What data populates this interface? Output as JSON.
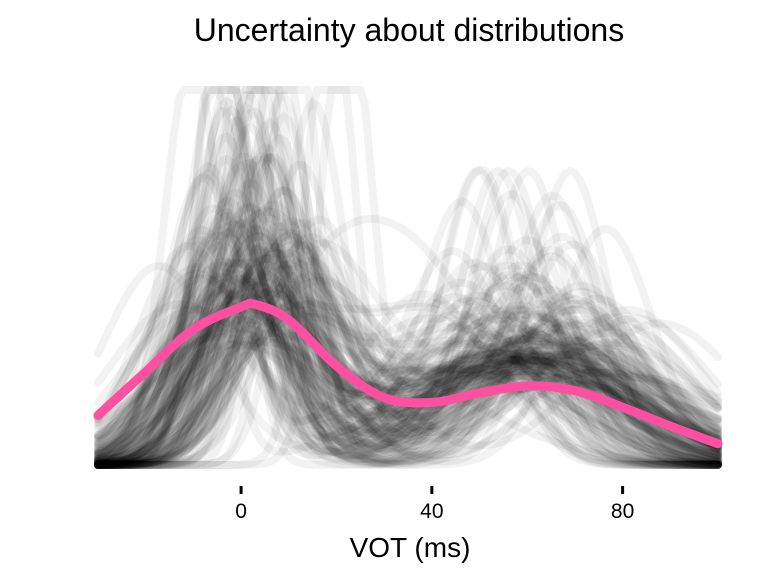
{
  "chart_data": {
    "type": "line",
    "title": "Uncertainty about distributions",
    "xlabel": "VOT (ms)",
    "ylabel": "",
    "xlim": [
      -30,
      100
    ],
    "x_ticks": [
      0,
      40,
      80
    ],
    "x_tick_labels": [
      "0",
      "40",
      "80"
    ],
    "grid": false,
    "legend": "none",
    "series": [
      {
        "color": "#000000",
        "opacity": 0.05,
        "samples": 160,
        "description_of_values": "sampled mixtures of two Gaussian components"
      },
      {
        "color": "#ff4fa0",
        "x": [
          -30,
          -20,
          -10,
          0,
          3,
          10,
          20,
          30,
          40,
          50,
          60,
          70,
          80,
          90,
          100
        ],
        "y_density": [
          0.0042,
          0.0079,
          0.0115,
          0.0134,
          0.0136,
          0.0123,
          0.0084,
          0.0057,
          0.0053,
          0.0061,
          0.0067,
          0.0063,
          0.0049,
          0.0033,
          0.0018
        ]
      }
    ]
  },
  "colors": {
    "mean_curve": "#ff4fa0",
    "samples": "#000000"
  }
}
